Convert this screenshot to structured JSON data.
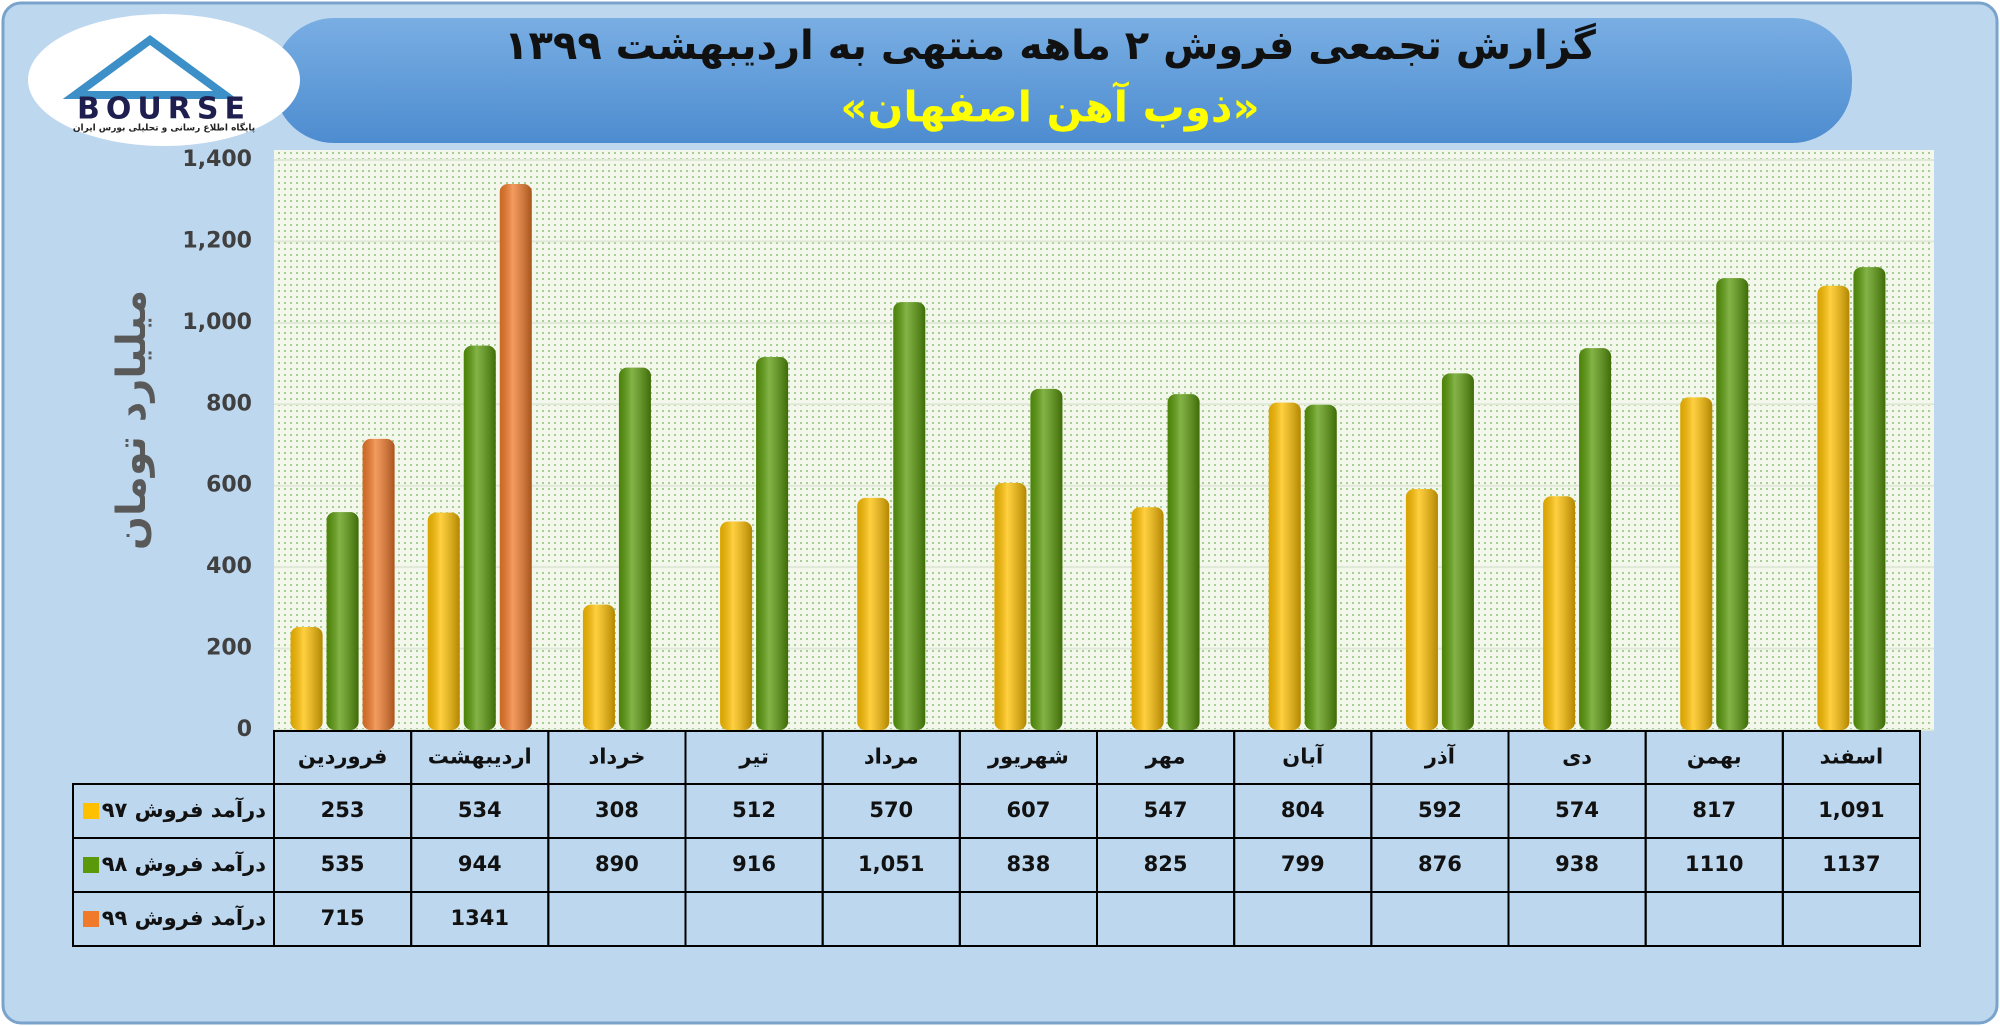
{
  "logo": {
    "text": "BOURSE",
    "caption": "پایگاه اطلاع رسانی و تحلیلی بورس ایران"
  },
  "chart_data": {
    "type": "bar",
    "title": "گزارش تجمعی فروش ۲ ماهه منتهی به اردیبهشت ۱۳۹۹",
    "subtitle": "«ذوب آهن اصفهان»",
    "y_label": "میلیارد تومان",
    "categories": [
      "فروردین",
      "اردیبهشت",
      "خرداد",
      "تیر",
      "مرداد",
      "شهریور",
      "مهر",
      "آبان",
      "آذر",
      "دی",
      "بهمن",
      "اسفند"
    ],
    "series": [
      {
        "name": "درآمد فروش ۹۷",
        "color": "#ffc000",
        "values": [
          253,
          534,
          308,
          512,
          570,
          607,
          547,
          804,
          592,
          574,
          817,
          1091
        ],
        "value_labels": [
          "253",
          "534",
          "308",
          "512",
          "570",
          "607",
          "547",
          "804",
          "592",
          "574",
          "817",
          "1,091"
        ]
      },
      {
        "name": "درآمد فروش ۹۸",
        "color": "#5a9a0a",
        "values": [
          535,
          944,
          890,
          916,
          1051,
          838,
          825,
          799,
          876,
          938,
          1110,
          1137
        ],
        "value_labels": [
          "535",
          "944",
          "890",
          "916",
          "1,051",
          "838",
          "825",
          "799",
          "876",
          "938",
          "1110",
          "1137"
        ]
      },
      {
        "name": "درآمد فروش ۹۹",
        "color": "#f07a2a",
        "values": [
          715,
          1341,
          null,
          null,
          null,
          null,
          null,
          null,
          null,
          null,
          null,
          null
        ]
      }
    ],
    "ylim": [
      0,
      1400
    ],
    "yticks": [
      0,
      200,
      400,
      600,
      800,
      {
        "value": 1000,
        "label": "1,000"
      },
      {
        "value": 1200,
        "label": "1,200"
      },
      {
        "value": 1400,
        "label": "1,400"
      }
    ],
    "grid": true
  }
}
